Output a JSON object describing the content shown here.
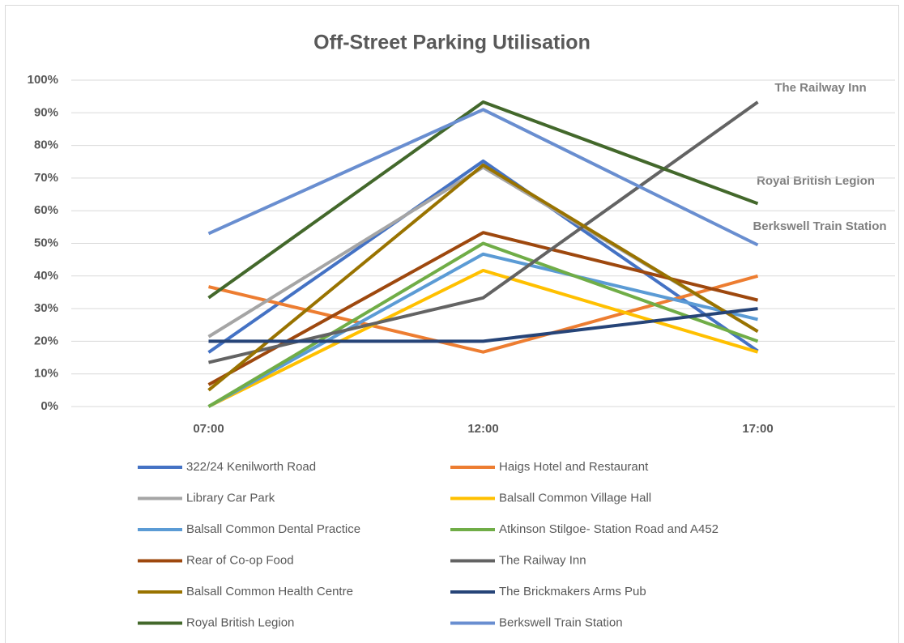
{
  "chart_data": {
    "type": "line",
    "title": "Off-Street Parking Utilisation",
    "categories": [
      "07:00",
      "12:00",
      "17:00"
    ],
    "series": [
      {
        "name": "322/24 Kenilworth Road",
        "color": "#4472c4",
        "values": [
          16.6,
          75.2,
          17
        ]
      },
      {
        "name": "Haigs Hotel and Restaurant",
        "color": "#ed7d31",
        "values": [
          36.7,
          16.7,
          40
        ]
      },
      {
        "name": "Library Car Park",
        "color": "#a5a5a5",
        "values": [
          21.4,
          73.3,
          23
        ]
      },
      {
        "name": "Balsall Common Village Hall",
        "color": "#ffc000",
        "values": [
          0,
          41.7,
          16.7
        ]
      },
      {
        "name": "Balsall Common Dental Practice",
        "color": "#5b9bd5",
        "values": [
          0,
          46.7,
          26.7
        ]
      },
      {
        "name": "Atkinson Stilgoe- Station Road and A452",
        "color": "#70ad47",
        "values": [
          0,
          50,
          20
        ]
      },
      {
        "name": "Rear of Co-op Food",
        "color": "#9e480e",
        "values": [
          6.7,
          53.3,
          32.6
        ]
      },
      {
        "name": "The Railway Inn",
        "color": "#636363",
        "values": [
          13.5,
          33.3,
          93.3
        ]
      },
      {
        "name": "Balsall Common Health Centre",
        "color": "#997300",
        "values": [
          5,
          74,
          23
        ]
      },
      {
        "name": "The Brickmakers Arms Pub",
        "color": "#264478",
        "values": [
          20,
          20,
          30
        ]
      },
      {
        "name": "Royal British Legion",
        "color": "#43682b",
        "values": [
          33.3,
          93.3,
          62.2
        ]
      },
      {
        "name": "Berkswell Train Station",
        "color": "#698ed0",
        "values": [
          53,
          91,
          49.5
        ]
      }
    ],
    "ylim": [
      0,
      100
    ],
    "yticks": [
      {
        "value": 0,
        "label": "0%"
      },
      {
        "value": 10,
        "label": "10%"
      },
      {
        "value": 20,
        "label": "20%"
      },
      {
        "value": 30,
        "label": "30%"
      },
      {
        "value": 40,
        "label": "40%"
      },
      {
        "value": 50,
        "label": "50%"
      },
      {
        "value": 60,
        "label": "60%"
      },
      {
        "value": 70,
        "label": "70%"
      },
      {
        "value": 80,
        "label": "80%"
      },
      {
        "value": 90,
        "label": "90%"
      },
      {
        "value": 100,
        "label": "100%"
      }
    ],
    "grid": true,
    "annotations": [
      "The Railway Inn",
      "Royal British Legion",
      "Berkswell Train Station"
    ]
  }
}
